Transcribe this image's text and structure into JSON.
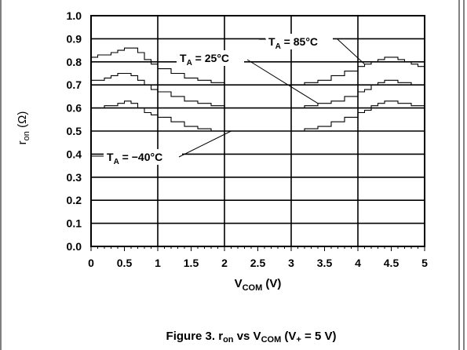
{
  "caption": {
    "prefix": "Figure 3. r",
    "sub1": "on",
    "mid": " vs V",
    "sub2": "COM",
    "mid2": " (V",
    "sub3": "+",
    "suffix": " = 5 V)"
  },
  "chart_data": {
    "type": "line",
    "title": "",
    "xlabel": {
      "main": "V",
      "sub": "COM",
      "unit": " (V)"
    },
    "ylabel": {
      "main": "r",
      "sub": "on",
      "unit": " (Ω)"
    },
    "xlim": [
      0,
      5
    ],
    "ylim": [
      0,
      1.0
    ],
    "x_ticks": [
      "0",
      "0.5",
      "1",
      "1.5",
      "2",
      "2.5",
      "3",
      "3.5",
      "4",
      "4.5",
      "5"
    ],
    "y_ticks": [
      "0.0",
      "0.1",
      "0.2",
      "0.3",
      "0.4",
      "0.5",
      "0.6",
      "0.7",
      "0.8",
      "0.9",
      "1.0"
    ],
    "grid": true,
    "series": [
      {
        "name": "T_A = 85°C",
        "label": {
          "main": "T",
          "sub": "A",
          "rest": " = 85°C"
        },
        "x": [
          0,
          0.1,
          0.2,
          0.3,
          0.4,
          0.5,
          0.6,
          0.7,
          0.8,
          0.9,
          1.0,
          1.2,
          1.4,
          1.6,
          1.8,
          2.0,
          2.2,
          2.4,
          2.6,
          2.8,
          3.0,
          3.2,
          3.4,
          3.6,
          3.8,
          4.0,
          4.1,
          4.2,
          4.3,
          4.4,
          4.5,
          4.6,
          4.7,
          4.8,
          4.9,
          5.0
        ],
        "y": [
          0.82,
          0.83,
          0.83,
          0.84,
          0.85,
          0.86,
          0.86,
          0.84,
          0.81,
          0.79,
          0.77,
          0.75,
          0.73,
          0.72,
          0.71,
          0.7,
          0.7,
          0.7,
          0.7,
          0.7,
          0.7,
          0.71,
          0.72,
          0.74,
          0.76,
          0.78,
          0.79,
          0.8,
          0.81,
          0.82,
          0.82,
          0.81,
          0.8,
          0.79,
          0.78,
          0.77
        ]
      },
      {
        "name": "T_A = 25°C",
        "label": {
          "main": "T",
          "sub": "A",
          "rest": " = 25°C"
        },
        "x": [
          0,
          0.1,
          0.2,
          0.3,
          0.4,
          0.5,
          0.6,
          0.7,
          0.8,
          0.9,
          1.0,
          1.2,
          1.4,
          1.6,
          1.8,
          2.0,
          2.2,
          2.4,
          2.6,
          2.8,
          3.0,
          3.2,
          3.4,
          3.6,
          3.8,
          4.0,
          4.1,
          4.2,
          4.3,
          4.4,
          4.5,
          4.6,
          4.7,
          4.8,
          4.9,
          5.0
        ],
        "y": [
          0.72,
          0.72,
          0.73,
          0.74,
          0.75,
          0.75,
          0.74,
          0.72,
          0.7,
          0.68,
          0.67,
          0.65,
          0.63,
          0.62,
          0.61,
          0.6,
          0.6,
          0.6,
          0.6,
          0.6,
          0.6,
          0.61,
          0.62,
          0.63,
          0.65,
          0.67,
          0.68,
          0.7,
          0.71,
          0.72,
          0.72,
          0.71,
          0.71,
          0.7,
          0.7,
          0.69
        ]
      },
      {
        "name": "T_A = −40°C",
        "label": {
          "main": "T",
          "sub": "A",
          "rest": " = −40°C"
        },
        "x": [
          0,
          0.1,
          0.2,
          0.3,
          0.4,
          0.5,
          0.6,
          0.7,
          0.8,
          0.9,
          1.0,
          1.2,
          1.4,
          1.6,
          1.8,
          2.0,
          2.2,
          2.4,
          2.6,
          2.8,
          3.0,
          3.2,
          3.4,
          3.6,
          3.8,
          4.0,
          4.1,
          4.2,
          4.3,
          4.4,
          4.5,
          4.6,
          4.7,
          4.8,
          4.9,
          5.0
        ],
        "y": [
          0.6,
          0.6,
          0.61,
          0.61,
          0.62,
          0.63,
          0.62,
          0.6,
          0.58,
          0.57,
          0.56,
          0.54,
          0.52,
          0.51,
          0.5,
          0.5,
          0.5,
          0.5,
          0.5,
          0.5,
          0.5,
          0.51,
          0.52,
          0.54,
          0.56,
          0.58,
          0.59,
          0.61,
          0.62,
          0.63,
          0.63,
          0.62,
          0.62,
          0.61,
          0.61,
          0.6
        ]
      }
    ]
  }
}
